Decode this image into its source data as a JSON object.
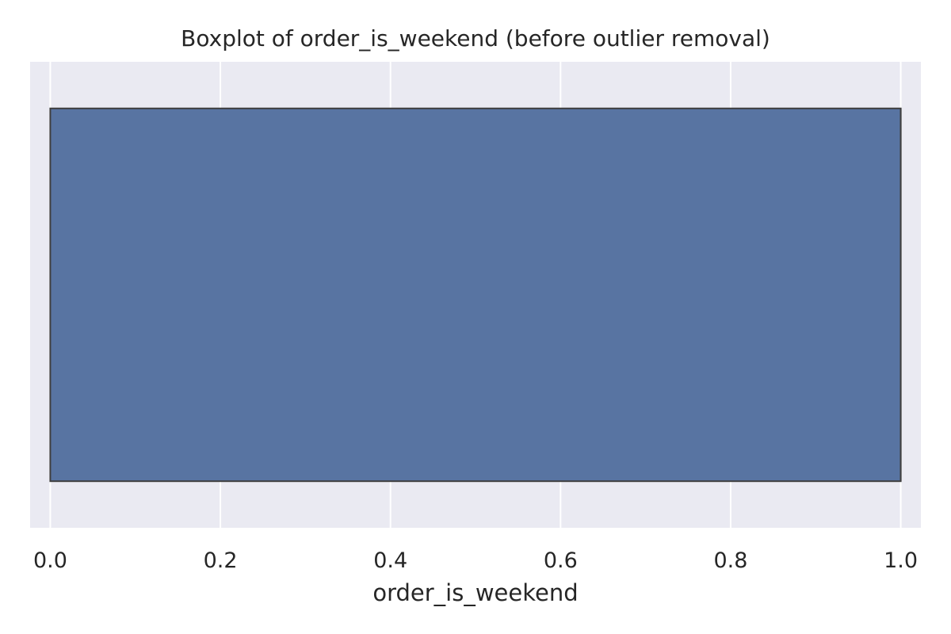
{
  "chart_data": {
    "type": "box",
    "title": "Boxplot of order_is_weekend (before outlier removal)",
    "xlabel": "order_is_weekend",
    "ylabel": "",
    "xlim": [
      -0.0237,
      1.0237
    ],
    "xticks": [
      0.0,
      0.2,
      0.4,
      0.6,
      0.8,
      1.0
    ],
    "xtick_labels": [
      "0.0",
      "0.2",
      "0.4",
      "0.6",
      "0.8",
      "1.0"
    ],
    "grid": true,
    "orientation": "horizontal",
    "series": [
      {
        "whisker_low": 0.0,
        "q1": 0.0,
        "median": 1.0,
        "q3": 1.0,
        "whisker_high": 1.0,
        "outliers": []
      }
    ],
    "colors": {
      "plot_background": "#eaeaf2",
      "grid": "#ffffff",
      "box_fill": "#5874a2",
      "box_edge": "#3f3f3f"
    }
  }
}
